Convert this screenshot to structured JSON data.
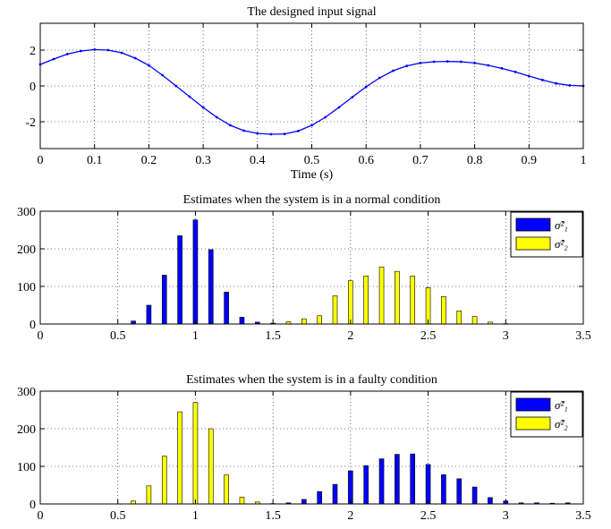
{
  "chart_data": [
    {
      "type": "line",
      "title": "The designed input signal",
      "xlabel": "Time (s)",
      "ylabel": "",
      "xlim": [
        0,
        1
      ],
      "ylim": [
        -3.5,
        3.5
      ],
      "xticks": [
        0,
        0.1,
        0.2,
        0.3,
        0.4,
        0.5,
        0.6,
        0.7,
        0.8,
        0.9,
        1
      ],
      "yticks": [
        -2,
        0,
        2
      ],
      "grid": true,
      "series": [
        {
          "color": "#0000ff",
          "points": [
            [
              0,
              1.2
            ],
            [
              0.025,
              1.5
            ],
            [
              0.05,
              1.78
            ],
            [
              0.075,
              1.95
            ],
            [
              0.1,
              2.03
            ],
            [
              0.125,
              2.0
            ],
            [
              0.15,
              1.85
            ],
            [
              0.175,
              1.55
            ],
            [
              0.2,
              1.15
            ],
            [
              0.225,
              0.6
            ],
            [
              0.25,
              0.0
            ],
            [
              0.275,
              -0.6
            ],
            [
              0.3,
              -1.2
            ],
            [
              0.325,
              -1.75
            ],
            [
              0.35,
              -2.2
            ],
            [
              0.375,
              -2.5
            ],
            [
              0.4,
              -2.65
            ],
            [
              0.425,
              -2.7
            ],
            [
              0.45,
              -2.68
            ],
            [
              0.475,
              -2.52
            ],
            [
              0.5,
              -2.2
            ],
            [
              0.525,
              -1.75
            ],
            [
              0.55,
              -1.2
            ],
            [
              0.575,
              -0.62
            ],
            [
              0.6,
              -0.05
            ],
            [
              0.625,
              0.45
            ],
            [
              0.65,
              0.85
            ],
            [
              0.675,
              1.12
            ],
            [
              0.7,
              1.28
            ],
            [
              0.725,
              1.35
            ],
            [
              0.75,
              1.37
            ],
            [
              0.775,
              1.35
            ],
            [
              0.8,
              1.28
            ],
            [
              0.825,
              1.15
            ],
            [
              0.85,
              0.98
            ],
            [
              0.875,
              0.78
            ],
            [
              0.9,
              0.55
            ],
            [
              0.925,
              0.33
            ],
            [
              0.95,
              0.14
            ],
            [
              0.975,
              0.03
            ],
            [
              1.0,
              0.0
            ]
          ]
        }
      ]
    },
    {
      "type": "bar",
      "title": "Estimates when the system is in a normal condition",
      "xlim": [
        0,
        3.5
      ],
      "ylim": [
        0,
        300
      ],
      "xticks": [
        0,
        0.5,
        1,
        1.5,
        2,
        2.5,
        3,
        3.5
      ],
      "yticks": [
        0,
        100,
        200,
        300
      ],
      "grid": true,
      "legend": "top-right",
      "series": [
        {
          "name": "σ̂²₁",
          "color": "#0000ff",
          "x": [
            0.6,
            0.7,
            0.8,
            0.9,
            1.0,
            1.1,
            1.2,
            1.3,
            1.4,
            1.5
          ],
          "values": [
            8,
            50,
            130,
            235,
            277,
            198,
            85,
            18,
            5,
            2
          ]
        },
        {
          "name": "σ̂²₂",
          "color": "#ffff00",
          "x": [
            1.5,
            1.6,
            1.7,
            1.8,
            1.9,
            2.0,
            2.1,
            2.2,
            2.3,
            2.4,
            2.5,
            2.6,
            2.7,
            2.8,
            2.9,
            3.0
          ],
          "values": [
            2,
            6,
            14,
            22,
            75,
            115,
            128,
            152,
            140,
            128,
            97,
            73,
            35,
            20,
            5,
            1
          ]
        }
      ]
    },
    {
      "type": "bar",
      "title": "Estimates when the system is in a faulty condition",
      "xlim": [
        0,
        3.5
      ],
      "ylim": [
        0,
        300
      ],
      "xticks": [
        0,
        0.5,
        1,
        1.5,
        2,
        2.5,
        3,
        3.5
      ],
      "yticks": [
        0,
        100,
        200,
        300
      ],
      "grid": true,
      "legend": "top-right",
      "series": [
        {
          "name": "σ̂²₁",
          "color": "#0000ff",
          "x": [
            1.6,
            1.7,
            1.8,
            1.9,
            2.0,
            2.1,
            2.2,
            2.3,
            2.4,
            2.5,
            2.6,
            2.7,
            2.8,
            2.9,
            3.0,
            3.1,
            3.2,
            3.3,
            3.4
          ],
          "values": [
            3,
            12,
            33,
            52,
            88,
            102,
            120,
            132,
            133,
            105,
            78,
            67,
            45,
            17,
            8,
            3,
            3,
            2,
            3
          ]
        },
        {
          "name": "σ̂²₂",
          "color": "#ffff00",
          "x": [
            0.6,
            0.7,
            0.8,
            0.9,
            1.0,
            1.1,
            1.2,
            1.3,
            1.4,
            1.5
          ],
          "values": [
            8,
            48,
            127,
            245,
            270,
            200,
            77,
            18,
            5,
            1
          ]
        }
      ]
    }
  ]
}
